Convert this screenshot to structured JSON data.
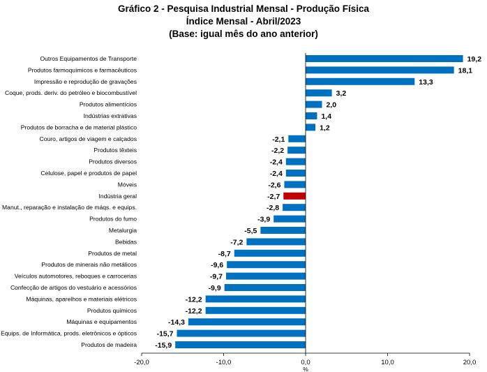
{
  "chart_data": {
    "type": "bar",
    "orientation": "horizontal",
    "title": "Gráfico 2 - Pesquisa Industrial Mensal - Produção Física",
    "subtitle": "Índice Mensal - Abril/2023",
    "subtitle2": "(Base: igual mês do ano anterior)",
    "xlabel": "%",
    "xlim": [
      -20,
      20
    ],
    "xticks": [
      -20,
      -10,
      0,
      10,
      20
    ],
    "xtick_labels": [
      "-20,0",
      "-10,0",
      "0,0",
      "10,0",
      "20,0"
    ],
    "grid": false,
    "colors": {
      "default": "#0070C0",
      "highlight": "#C00000"
    },
    "highlight_category": "Indústria geral",
    "categories": [
      "Outros Equipamentos de Transporte",
      "Produtos farmoquímicos e farmacêuticos",
      "Impressão e reprodução de gravações",
      "Coque, prods. deriv. do petróleo e biocombustível",
      "Produtos alimentícios",
      "Indústrias extrativas",
      "Produtos de borracha e de material plástico",
      "Couro, artigos de viagem e calçados",
      "Produtos têxteis",
      "Produtos diversos",
      "Celulose, papel e produtos de papel",
      "Móveis",
      "Indústria geral",
      "Manut., reparação e instalação de máqs. e equips.",
      "Produtos do fumo",
      "Metalurgia",
      "Bebidas",
      "Produtos de metal",
      "Produtos de minerais não metálicos",
      "Veículos automotores, reboques e carrocerias",
      "Confecção de artigos do vestuário e acessórios",
      "Máquinas, aparelhos e materiais elétricos",
      "Produtos químicos",
      "Máquinas e equipamentos",
      "Equips. de Informática, prods. eletrônicos e ópticos",
      "Produtos de madeira"
    ],
    "values": [
      19.2,
      18.1,
      13.3,
      3.2,
      2.0,
      1.4,
      1.2,
      -2.1,
      -2.2,
      -2.4,
      -2.4,
      -2.6,
      -2.7,
      -2.8,
      -3.9,
      -5.5,
      -7.2,
      -8.7,
      -9.6,
      -9.7,
      -9.9,
      -12.2,
      -12.2,
      -14.3,
      -15.7,
      -15.9
    ],
    "value_labels": [
      "19,2",
      "18,1",
      "13,3",
      "3,2",
      "2,0",
      "1,4",
      "1,2",
      "-2,1",
      "-2,2",
      "-2,4",
      "-2,4",
      "-2,6",
      "-2,7",
      "-2,8",
      "-3,9",
      "-5,5",
      "-7,2",
      "-8,7",
      "-9,6",
      "-9,7",
      "-9,9",
      "-12,2",
      "-12,2",
      "-14,3",
      "-15,7",
      "-15,9"
    ]
  }
}
